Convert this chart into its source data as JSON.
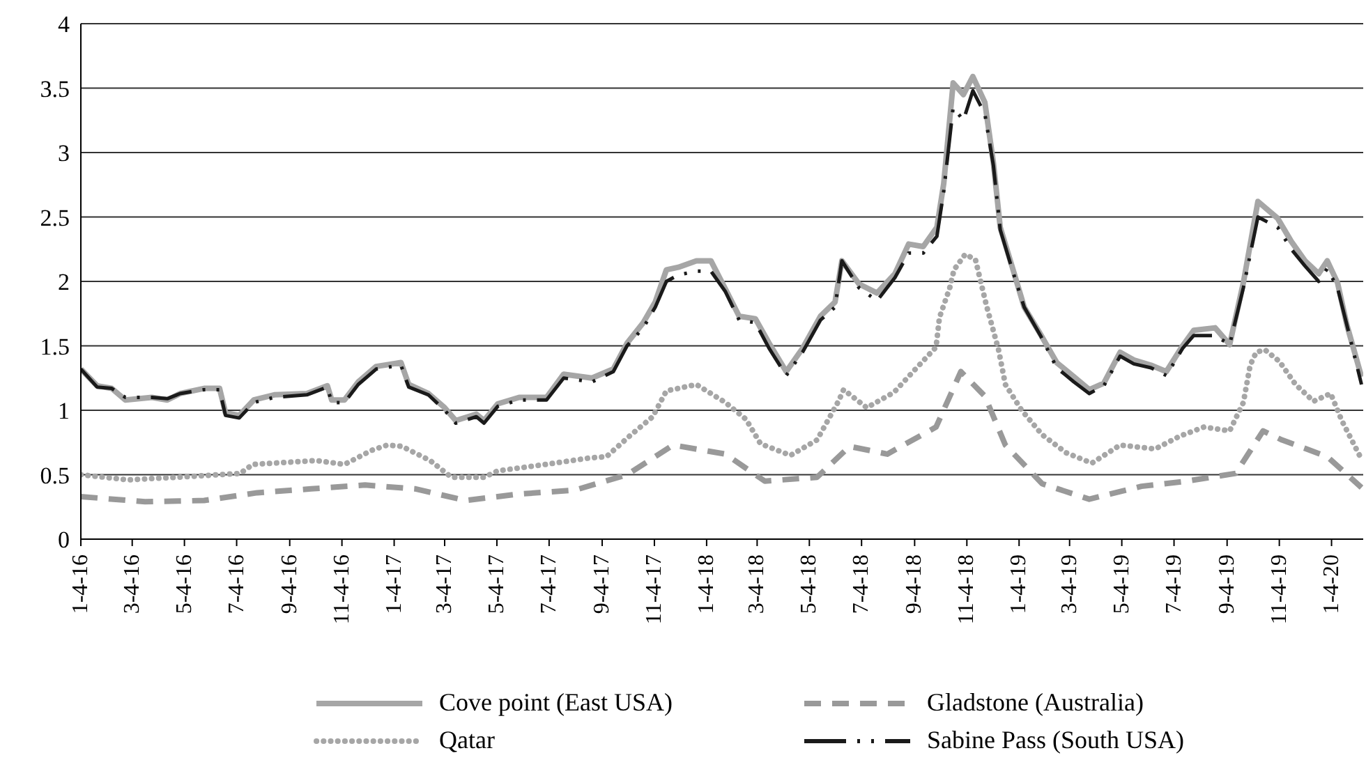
{
  "chart_data": {
    "type": "line",
    "x": [
      "2016-01-04",
      "2016-01-23",
      "2016-02-09",
      "2016-02-25",
      "2016-03-27",
      "2016-04-14",
      "2016-04-29",
      "2016-05-27",
      "2016-06-14",
      "2016-06-21",
      "2016-07-07",
      "2016-07-24",
      "2016-08-17",
      "2016-09-24",
      "2016-10-18",
      "2016-10-23",
      "2016-11-07",
      "2016-11-23",
      "2016-12-14",
      "2017-01-12",
      "2017-01-21",
      "2017-02-13",
      "2017-03-04",
      "2017-03-17",
      "2017-04-10",
      "2017-04-19",
      "2017-05-05",
      "2017-05-30",
      "2017-07-01",
      "2017-07-21",
      "2017-08-23",
      "2017-09-17",
      "2017-10-03",
      "2017-10-22",
      "2017-11-05",
      "2017-11-18",
      "2017-12-02",
      "2017-12-23",
      "2018-01-09",
      "2018-01-26",
      "2018-02-11",
      "2018-03-02",
      "2018-03-18",
      "2018-04-07",
      "2018-04-26",
      "2018-05-17",
      "2018-06-03",
      "2018-06-11",
      "2018-07-01",
      "2018-07-22",
      "2018-08-12",
      "2018-08-28",
      "2018-09-14",
      "2018-09-30",
      "2018-10-08",
      "2018-10-19",
      "2018-10-31",
      "2018-11-11",
      "2018-11-25",
      "2018-12-05",
      "2018-12-13",
      "2018-12-28",
      "2019-01-10",
      "2019-01-29",
      "2019-02-17",
      "2019-03-09",
      "2019-03-27",
      "2019-04-13",
      "2019-05-02",
      "2019-05-18",
      "2019-06-07",
      "2019-06-25",
      "2019-07-14",
      "2019-07-27",
      "2019-08-21",
      "2019-09-07",
      "2019-09-23",
      "2019-10-10",
      "2019-11-02",
      "2019-11-18",
      "2019-12-04",
      "2019-12-20",
      "2019-12-30",
      "2020-01-11",
      "2020-01-22",
      "2020-02-08"
    ],
    "series": [
      {
        "name": "Cove point (East USA)",
        "color": "#a6a6a6",
        "line_style": "solid",
        "values": [
          1.32,
          1.19,
          1.17,
          1.08,
          1.1,
          1.08,
          1.13,
          1.17,
          1.17,
          0.98,
          0.96,
          1.08,
          1.12,
          1.13,
          1.19,
          1.08,
          1.08,
          1.22,
          1.34,
          1.37,
          1.2,
          1.13,
          1.02,
          0.92,
          0.97,
          0.92,
          1.05,
          1.1,
          1.1,
          1.28,
          1.25,
          1.32,
          1.52,
          1.68,
          1.84,
          2.09,
          2.11,
          2.16,
          2.16,
          1.94,
          1.73,
          1.71,
          1.52,
          1.3,
          1.48,
          1.73,
          1.84,
          2.16,
          1.98,
          1.91,
          2.06,
          2.29,
          2.27,
          2.42,
          2.76,
          3.54,
          3.45,
          3.59,
          3.39,
          2.92,
          2.42,
          2.09,
          1.8,
          1.59,
          1.37,
          1.26,
          1.16,
          1.21,
          1.45,
          1.39,
          1.35,
          1.3,
          1.5,
          1.62,
          1.64,
          1.51,
          1.99,
          2.62,
          2.49,
          2.31,
          2.16,
          2.06,
          2.16,
          1.99,
          1.66,
          1.26
        ]
      },
      {
        "name": "Gladstone (Australia)",
        "color": "#999999",
        "line_style": "dashed",
        "x": [
          "2016-01-04",
          "2016-03-19",
          "2016-05-27",
          "2016-07-28",
          "2016-09-29",
          "2016-12-01",
          "2017-01-29",
          "2017-03-28",
          "2017-05-30",
          "2017-08-03",
          "2017-10-03",
          "2017-11-26",
          "2018-01-26",
          "2018-03-13",
          "2018-05-13",
          "2018-06-20",
          "2018-08-03",
          "2018-09-29",
          "2018-10-28",
          "2018-11-25",
          "2018-12-19",
          "2019-01-31",
          "2019-03-27",
          "2019-05-27",
          "2019-07-19",
          "2019-09-14",
          "2019-10-16",
          "2019-11-07",
          "2019-12-30",
          "2020-02-08"
        ],
        "values": [
          0.33,
          0.29,
          0.3,
          0.36,
          0.39,
          0.42,
          0.39,
          0.3,
          0.35,
          0.38,
          0.5,
          0.73,
          0.66,
          0.45,
          0.48,
          0.72,
          0.66,
          0.87,
          1.3,
          1.11,
          0.73,
          0.43,
          0.31,
          0.41,
          0.45,
          0.51,
          0.84,
          0.77,
          0.64,
          0.4
        ]
      },
      {
        "name": "Qatar",
        "color": "#a6a6a6",
        "line_style": "dotted",
        "x": [
          "2016-01-04",
          "2016-02-28",
          "2016-04-25",
          "2016-07-08",
          "2016-07-23",
          "2016-10-05",
          "2016-11-07",
          "2016-12-09",
          "2016-12-27",
          "2017-01-13",
          "2017-02-15",
          "2017-03-12",
          "2017-04-19",
          "2017-05-05",
          "2017-06-30",
          "2017-08-20",
          "2017-09-09",
          "2017-10-06",
          "2017-11-02",
          "2017-11-18",
          "2017-12-23",
          "2018-01-26",
          "2018-02-19",
          "2018-03-08",
          "2018-04-12",
          "2018-05-13",
          "2018-06-07",
          "2018-06-13",
          "2018-07-10",
          "2018-08-11",
          "2018-09-05",
          "2018-09-29",
          "2018-10-03",
          "2018-10-15",
          "2018-10-20",
          "2018-11-02",
          "2018-11-14",
          "2018-11-27",
          "2018-12-11",
          "2018-12-19",
          "2019-01-07",
          "2019-01-31",
          "2019-02-28",
          "2019-03-30",
          "2019-05-02",
          "2019-06-12",
          "2019-07-11",
          "2019-08-08",
          "2019-09-07",
          "2019-09-23",
          "2019-10-01",
          "2019-10-08",
          "2019-10-18",
          "2019-11-04",
          "2019-11-23",
          "2019-12-14",
          "2020-01-03",
          "2020-01-16",
          "2020-02-08"
        ],
        "values": [
          0.5,
          0.46,
          0.48,
          0.51,
          0.58,
          0.61,
          0.58,
          0.69,
          0.73,
          0.72,
          0.61,
          0.48,
          0.48,
          0.53,
          0.58,
          0.63,
          0.64,
          0.8,
          0.95,
          1.15,
          1.2,
          1.06,
          0.93,
          0.74,
          0.65,
          0.77,
          1.07,
          1.16,
          1.02,
          1.14,
          1.32,
          1.49,
          1.72,
          1.95,
          2.09,
          2.21,
          2.17,
          1.81,
          1.47,
          1.2,
          1.0,
          0.81,
          0.67,
          0.59,
          0.73,
          0.7,
          0.8,
          0.87,
          0.84,
          1.06,
          1.35,
          1.45,
          1.47,
          1.38,
          1.2,
          1.07,
          1.13,
          0.92,
          0.62
        ]
      },
      {
        "name": "Sabine Pass (South USA)",
        "color": "#1a1a1a",
        "line_style": "dashed",
        "values": [
          1.32,
          1.18,
          1.17,
          1.1,
          1.1,
          1.09,
          1.13,
          1.16,
          1.16,
          0.96,
          0.94,
          1.06,
          1.1,
          1.12,
          1.18,
          1.06,
          1.06,
          1.2,
          1.32,
          1.35,
          1.18,
          1.12,
          1.0,
          0.9,
          0.95,
          0.9,
          1.03,
          1.08,
          1.08,
          1.25,
          1.22,
          1.3,
          1.5,
          1.64,
          1.8,
          2.0,
          2.05,
          2.08,
          2.08,
          1.92,
          1.7,
          1.68,
          1.48,
          1.27,
          1.45,
          1.7,
          1.8,
          2.16,
          1.95,
          1.85,
          2.03,
          2.22,
          2.22,
          2.35,
          2.7,
          3.35,
          3.25,
          3.48,
          3.3,
          2.9,
          2.4,
          2.07,
          1.8,
          1.58,
          1.33,
          1.22,
          1.13,
          1.19,
          1.42,
          1.36,
          1.33,
          1.27,
          1.48,
          1.58,
          1.58,
          1.51,
          1.95,
          2.5,
          2.42,
          2.25,
          2.12,
          2.0,
          2.1,
          1.95,
          1.66,
          1.2
        ]
      }
    ],
    "xlim": [
      "2016-01-04",
      "2020-02-10"
    ],
    "xticks": [
      {
        "value": "2016-01-04",
        "label": "1-4-16"
      },
      {
        "value": "2016-03-04",
        "label": "3-4-16"
      },
      {
        "value": "2016-05-04",
        "label": "5-4-16"
      },
      {
        "value": "2016-07-04",
        "label": "7-4-16"
      },
      {
        "value": "2016-09-04",
        "label": "9-4-16"
      },
      {
        "value": "2016-11-04",
        "label": "11-4-16"
      },
      {
        "value": "2017-01-04",
        "label": "1-4-17"
      },
      {
        "value": "2017-03-04",
        "label": "3-4-17"
      },
      {
        "value": "2017-05-04",
        "label": "5-4-17"
      },
      {
        "value": "2017-07-04",
        "label": "7-4-17"
      },
      {
        "value": "2017-09-04",
        "label": "9-4-17"
      },
      {
        "value": "2017-11-04",
        "label": "11-4-17"
      },
      {
        "value": "2018-01-04",
        "label": "1-4-18"
      },
      {
        "value": "2018-03-04",
        "label": "3-4-18"
      },
      {
        "value": "2018-05-04",
        "label": "5-4-18"
      },
      {
        "value": "2018-07-04",
        "label": "7-4-18"
      },
      {
        "value": "2018-09-04",
        "label": "9-4-18"
      },
      {
        "value": "2018-11-04",
        "label": "11-4-18"
      },
      {
        "value": "2019-01-04",
        "label": "1-4-19"
      },
      {
        "value": "2019-03-04",
        "label": "3-4-19"
      },
      {
        "value": "2019-05-04",
        "label": "5-4-19"
      },
      {
        "value": "2019-07-04",
        "label": "7-4-19"
      },
      {
        "value": "2019-09-04",
        "label": "9-4-19"
      },
      {
        "value": "2019-11-04",
        "label": "11-4-19"
      },
      {
        "value": "2020-01-04",
        "label": "1-4-20"
      }
    ],
    "ylim": [
      0,
      4
    ],
    "yticks": [
      0,
      0.5,
      1,
      1.5,
      2,
      2.5,
      3,
      3.5,
      4
    ],
    "grid": "y",
    "legend": "bottom",
    "marker": "none"
  }
}
